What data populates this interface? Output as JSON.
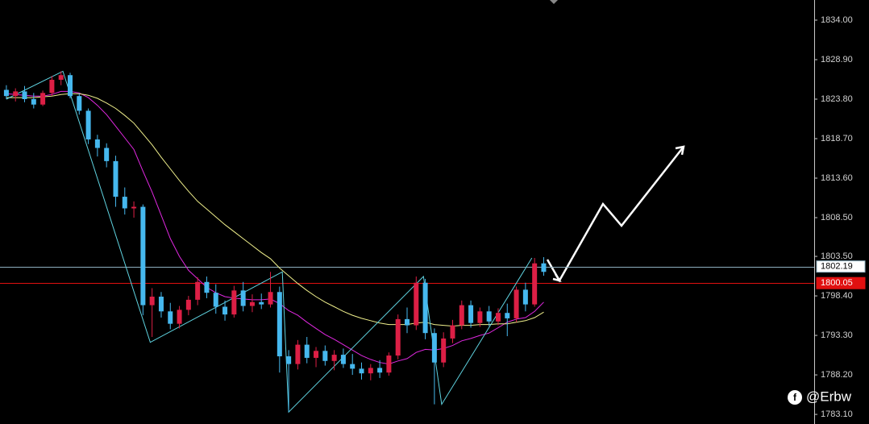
{
  "chart_data": {
    "type": "candlestick",
    "xlim": [
      -0.7,
      88.7
    ],
    "ylim": [
      1781.86,
      1836.6
    ],
    "yticks": [
      {
        "value": 1834,
        "label": "1834.00"
      },
      {
        "value": 1828.9,
        "label": "1828.90"
      },
      {
        "value": 1823.8,
        "label": "1823.80"
      },
      {
        "value": 1818.7,
        "label": "1818.70"
      },
      {
        "value": 1813.6,
        "label": "1813.60"
      },
      {
        "value": 1808.5,
        "label": "1808.50"
      },
      {
        "value": 1803.5,
        "label": "1803.50"
      },
      {
        "value": 1798.4,
        "label": "1798.40"
      },
      {
        "value": 1793.3,
        "label": "1793.30"
      },
      {
        "value": 1788.2,
        "label": "1788.20"
      },
      {
        "value": 1783.1,
        "label": "1783.10"
      }
    ],
    "up_color": "#dc1f45",
    "down_color": "#46b8ee",
    "candles": [
      [
        1825.0,
        1825.6,
        1823.8,
        1824.2
      ],
      [
        1824.2,
        1825.2,
        1823.5,
        1824.8
      ],
      [
        1824.8,
        1825.5,
        1823.4,
        1823.8
      ],
      [
        1823.8,
        1824.6,
        1822.6,
        1823.1
      ],
      [
        1823.1,
        1824.9,
        1822.9,
        1824.6
      ],
      [
        1824.6,
        1826.8,
        1824.2,
        1826.3
      ],
      [
        1826.3,
        1827.4,
        1825.6,
        1826.9
      ],
      [
        1826.9,
        1827.2,
        1823.9,
        1824.2
      ],
      [
        1824.2,
        1824.5,
        1821.8,
        1822.3
      ],
      [
        1822.3,
        1822.6,
        1818.0,
        1818.6
      ],
      [
        1818.6,
        1819.2,
        1816.4,
        1817.5
      ],
      [
        1817.5,
        1818.1,
        1815.0,
        1815.8
      ],
      [
        1815.8,
        1816.5,
        1809.9,
        1811.2
      ],
      [
        1811.2,
        1812.4,
        1808.9,
        1809.7
      ],
      [
        1809.7,
        1810.6,
        1808.5,
        1809.9
      ],
      [
        1809.9,
        1810.2,
        1795.9,
        1797.2
      ],
      [
        1797.2,
        1799.4,
        1793.1,
        1798.3
      ],
      [
        1798.3,
        1798.9,
        1795.6,
        1796.4
      ],
      [
        1796.4,
        1797.5,
        1794.1,
        1794.8
      ],
      [
        1794.8,
        1797.1,
        1794.2,
        1796.6
      ],
      [
        1796.6,
        1798.4,
        1795.9,
        1797.9
      ],
      [
        1797.9,
        1800.8,
        1797.2,
        1800.2
      ],
      [
        1800.2,
        1800.9,
        1798.1,
        1798.8
      ],
      [
        1798.8,
        1799.9,
        1796.1,
        1797.0
      ],
      [
        1797.0,
        1797.8,
        1795.2,
        1796.0
      ],
      [
        1796.0,
        1799.7,
        1795.6,
        1799.1
      ],
      [
        1799.1,
        1800.2,
        1796.4,
        1797.1
      ],
      [
        1797.1,
        1798.6,
        1796.3,
        1797.6
      ],
      [
        1797.6,
        1798.7,
        1796.7,
        1797.3
      ],
      [
        1797.3,
        1801.5,
        1796.9,
        1798.9
      ],
      [
        1798.9,
        1799.6,
        1788.5,
        1790.6
      ],
      [
        1790.6,
        1791.4,
        1783.4,
        1789.6
      ],
      [
        1789.6,
        1792.7,
        1788.9,
        1792.1
      ],
      [
        1792.1,
        1793.1,
        1789.7,
        1790.4
      ],
      [
        1790.4,
        1791.8,
        1789.2,
        1791.3
      ],
      [
        1791.3,
        1792.0,
        1789.4,
        1790.0
      ],
      [
        1790.0,
        1791.4,
        1788.8,
        1790.8
      ],
      [
        1790.8,
        1791.6,
        1789.1,
        1789.6
      ],
      [
        1789.6,
        1790.9,
        1788.2,
        1789.0
      ],
      [
        1789.0,
        1789.8,
        1787.6,
        1788.4
      ],
      [
        1788.4,
        1789.6,
        1787.5,
        1789.1
      ],
      [
        1789.1,
        1790.1,
        1787.8,
        1788.5
      ],
      [
        1788.5,
        1791.1,
        1788.1,
        1790.7
      ],
      [
        1790.7,
        1796.0,
        1790.2,
        1795.4
      ],
      [
        1795.4,
        1796.9,
        1793.6,
        1794.6
      ],
      [
        1794.6,
        1800.9,
        1794.0,
        1800.1
      ],
      [
        1800.1,
        1800.6,
        1792.8,
        1793.6
      ],
      [
        1793.6,
        1794.2,
        1784.4,
        1789.8
      ],
      [
        1789.8,
        1793.7,
        1789.2,
        1792.9
      ],
      [
        1792.9,
        1795.3,
        1792.3,
        1794.6
      ],
      [
        1794.6,
        1797.8,
        1794.1,
        1797.2
      ],
      [
        1797.2,
        1797.8,
        1794.3,
        1794.9
      ],
      [
        1794.9,
        1796.9,
        1794.4,
        1796.4
      ],
      [
        1796.4,
        1797.1,
        1794.5,
        1795.1
      ],
      [
        1795.1,
        1796.8,
        1794.6,
        1796.2
      ],
      [
        1796.2,
        1797.4,
        1793.2,
        1795.5
      ],
      [
        1795.5,
        1799.6,
        1795.0,
        1799.2
      ],
      [
        1799.2,
        1800.1,
        1796.4,
        1797.3
      ],
      [
        1797.3,
        1803.3,
        1797.0,
        1802.6
      ],
      [
        1802.6,
        1803.4,
        1801.0,
        1801.5
      ]
    ],
    "series": [
      {
        "color": "#e028e0",
        "values": [
          1824.5,
          1824.4,
          1824.3,
          1824.2,
          1824.2,
          1824.4,
          1824.8,
          1824.8,
          1824.6,
          1824.0,
          1823.0,
          1821.8,
          1820.3,
          1818.8,
          1817.3,
          1814.5,
          1811.8,
          1808.8,
          1805.8,
          1803.5,
          1801.7,
          1800.6,
          1799.5,
          1798.8,
          1798.3,
          1798.1,
          1798.0,
          1797.9,
          1797.9,
          1798.0,
          1797.4,
          1796.5,
          1795.9,
          1795.0,
          1794.2,
          1793.4,
          1792.8,
          1792.1,
          1791.4,
          1790.7,
          1790.2,
          1789.8,
          1789.6,
          1790.0,
          1790.3,
          1791.1,
          1791.5,
          1791.4,
          1791.6,
          1792.0,
          1792.6,
          1792.9,
          1793.3,
          1793.6,
          1794.3,
          1795.0,
          1795.4,
          1795.6,
          1796.4,
          1797.6
        ]
      },
      {
        "color": "#f0f08c",
        "values": [
          1824.0,
          1824.0,
          1824.0,
          1824.0,
          1824.1,
          1824.2,
          1824.4,
          1824.5,
          1824.5,
          1824.3,
          1823.9,
          1823.3,
          1822.6,
          1821.7,
          1820.7,
          1819.3,
          1817.9,
          1816.3,
          1814.8,
          1813.3,
          1811.9,
          1810.6,
          1809.6,
          1808.6,
          1807.6,
          1806.7,
          1805.8,
          1804.9,
          1804.0,
          1803.2,
          1802.0,
          1801.0,
          1800.0,
          1799.1,
          1798.3,
          1797.6,
          1797.0,
          1796.4,
          1795.9,
          1795.5,
          1795.2,
          1794.9,
          1794.7,
          1794.7,
          1794.7,
          1794.9,
          1795.0,
          1794.7,
          1794.6,
          1794.5,
          1794.6,
          1794.6,
          1794.7,
          1794.7,
          1794.8,
          1794.8,
          1795.0,
          1795.2,
          1795.6,
          1796.3
        ]
      }
    ],
    "zigzag": {
      "color": "#5fd3e0",
      "x": [
        0,
        6.2,
        15.8,
        30.3,
        31,
        45.8,
        47.8,
        57.7
      ],
      "values": [
        1823.8,
        1827.4,
        1792.4,
        1801.5,
        1783.4,
        1800.9,
        1784.4,
        1803.3
      ]
    },
    "price_lines": [
      {
        "value": 1802.19,
        "color": "#8fb0c0"
      },
      {
        "value": 1800.05,
        "color": "#e01010"
      }
    ],
    "watermark": "@Erbw"
  }
}
